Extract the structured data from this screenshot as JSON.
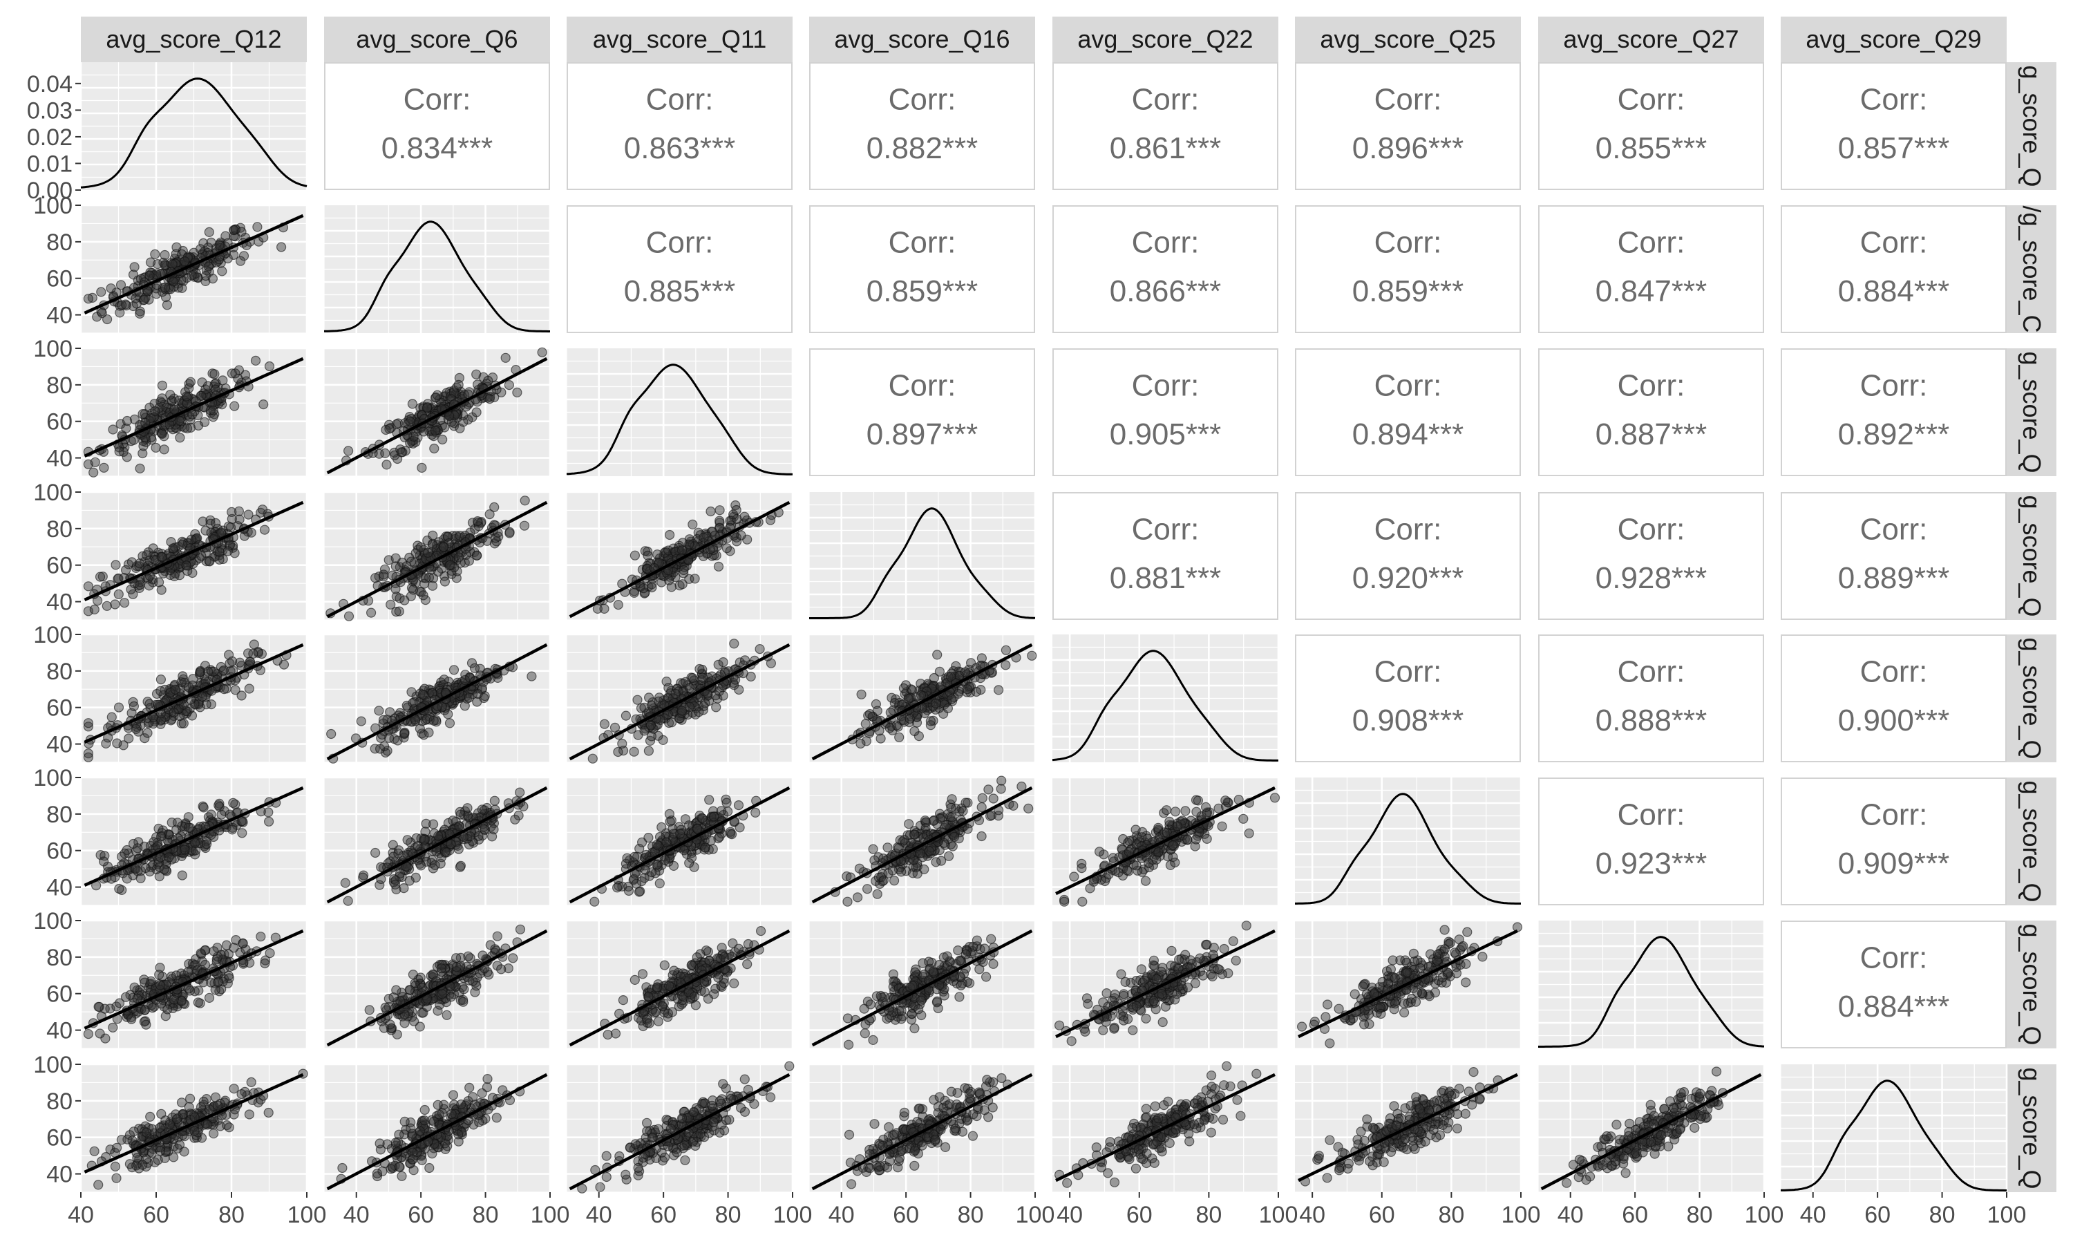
{
  "chart_data": {
    "type": "scatter-matrix",
    "variables": [
      "avg_score_Q12",
      "avg_score_Q6",
      "avg_score_Q11",
      "avg_score_Q16",
      "avg_score_Q22",
      "avg_score_Q25",
      "avg_score_Q27",
      "avg_score_Q29"
    ],
    "row_strip_labels": [
      "g_score_Q",
      "/g_score_C",
      "g_score_Q",
      "g_score_Q",
      "g_score_Q",
      "g_score_Q",
      "g_score_Q",
      "g_score_Q"
    ],
    "correlation_label": "Corr:",
    "correlations": [
      [
        null,
        "0.834***",
        "0.863***",
        "0.882***",
        "0.861***",
        "0.896***",
        "0.855***",
        "0.857***"
      ],
      [
        null,
        null,
        "0.885***",
        "0.859***",
        "0.866***",
        "0.859***",
        "0.847***",
        "0.884***"
      ],
      [
        null,
        null,
        null,
        "0.897***",
        "0.905***",
        "0.894***",
        "0.887***",
        "0.892***"
      ],
      [
        null,
        null,
        null,
        null,
        "0.881***",
        "0.920***",
        "0.928***",
        "0.889***"
      ],
      [
        null,
        null,
        null,
        null,
        null,
        "0.908***",
        "0.888***",
        "0.900***"
      ],
      [
        null,
        null,
        null,
        null,
        null,
        null,
        "0.923***",
        "0.909***"
      ],
      [
        null,
        null,
        null,
        null,
        null,
        null,
        null,
        "0.884***"
      ],
      [
        null,
        null,
        null,
        null,
        null,
        null,
        null,
        null
      ]
    ],
    "x_ranges": [
      [
        40,
        100
      ],
      [
        30,
        100
      ],
      [
        30,
        100
      ],
      [
        30,
        100
      ],
      [
        35,
        100
      ],
      [
        35,
        100
      ],
      [
        30,
        100
      ],
      [
        30,
        100
      ]
    ],
    "x_tick_labels": [
      [
        "40",
        "60",
        "80",
        "100"
      ],
      [
        "40",
        "60",
        "80",
        "100"
      ],
      [
        "40",
        "60",
        "80",
        "100"
      ],
      [
        "40",
        "60",
        "80",
        "100"
      ],
      [
        "40",
        "60",
        "80",
        "100"
      ],
      [
        "40",
        "60",
        "80",
        "100"
      ],
      [
        "40",
        "60",
        "80",
        "100"
      ],
      [
        "40",
        "60",
        "80",
        "100"
      ]
    ],
    "first_row_density_axis": {
      "range": [
        0,
        0.048
      ],
      "tick_labels": [
        "0.00",
        "0.01",
        "0.02",
        "0.03",
        "0.04"
      ]
    },
    "y_range": [
      30,
      100
    ],
    "y_tick_labels": [
      "40",
      "60",
      "80",
      "100"
    ],
    "density_modes": [
      71,
      63,
      63,
      68,
      64,
      66,
      68,
      63
    ],
    "density_spread": [
      10,
      9,
      10,
      8,
      9,
      8,
      9,
      9
    ],
    "grid": true,
    "panel_background": "#ebebeb",
    "strip_background": "#d9d9d9",
    "point_color": "#333333",
    "line_color": "#000000",
    "regression_line": true
  }
}
